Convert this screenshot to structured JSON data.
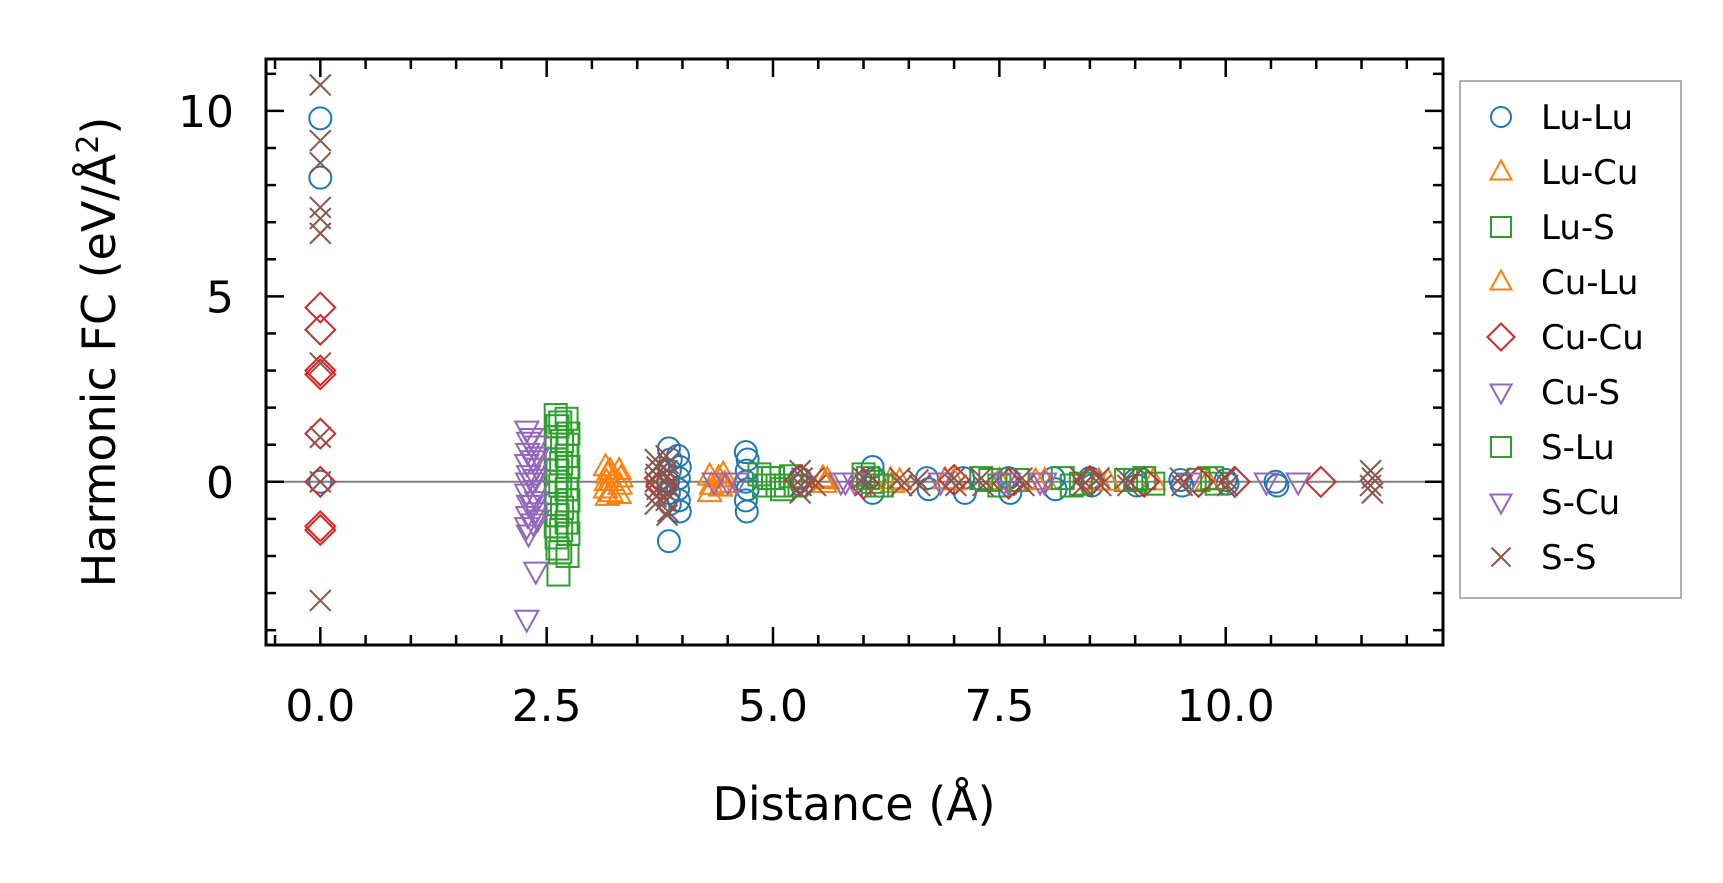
{
  "chart_data": {
    "type": "scatter",
    "title": "",
    "xlabel": "Distance (Å)",
    "ylabel_main": "Harmonic FC (eV/Å",
    "ylabel_sup": "2",
    "ylabel_close": ")",
    "xlim": [
      -0.6,
      12.4
    ],
    "ylim": [
      -4.4,
      11.4
    ],
    "xticks": [
      0.0,
      2.5,
      5.0,
      7.5,
      10.0
    ],
    "xtick_labels": [
      "0.0",
      "2.5",
      "5.0",
      "7.5",
      "10.0"
    ],
    "yticks": [
      0,
      5,
      10
    ],
    "ytick_labels": [
      "0",
      "5",
      "10"
    ],
    "zero_line": true,
    "legend_position": "right-outside",
    "series": [
      {
        "name": "Lu-Lu",
        "marker": "circle",
        "color": "#1f77b4",
        "points": [
          [
            0,
            9.8
          ],
          [
            0,
            8.2
          ],
          [
            0,
            0
          ],
          [
            3.85,
            0.9
          ],
          [
            3.87,
            0.6
          ],
          [
            3.86,
            0.3
          ],
          [
            3.84,
            0
          ],
          [
            3.85,
            -0.3
          ],
          [
            3.86,
            -0.6
          ],
          [
            3.85,
            -1.6
          ],
          [
            3.95,
            0.7
          ],
          [
            3.97,
            0.4
          ],
          [
            3.96,
            0.1
          ],
          [
            3.95,
            -0.2
          ],
          [
            3.96,
            -0.5
          ],
          [
            3.97,
            -0.8
          ],
          [
            4.7,
            0.8
          ],
          [
            4.72,
            0.6
          ],
          [
            4.71,
            0.3
          ],
          [
            4.7,
            0
          ],
          [
            4.72,
            -0.2
          ],
          [
            4.7,
            -0.5
          ],
          [
            4.71,
            -0.8
          ],
          [
            5.3,
            0.1
          ],
          [
            5.32,
            -0.1
          ],
          [
            6.1,
            0.4
          ],
          [
            6.12,
            0.1
          ],
          [
            6.1,
            -0.3
          ],
          [
            6.7,
            0.1
          ],
          [
            6.72,
            -0.2
          ],
          [
            7.1,
            0.1
          ],
          [
            7.12,
            -0.3
          ],
          [
            7.6,
            0.1
          ],
          [
            7.62,
            -0.3
          ],
          [
            8.1,
            0.1
          ],
          [
            8.12,
            -0.2
          ],
          [
            8.5,
            0.1
          ],
          [
            8.52,
            -0.1
          ],
          [
            9.0,
            0.05
          ],
          [
            9.02,
            -0.1
          ],
          [
            9.5,
            0.05
          ],
          [
            9.52,
            -0.1
          ],
          [
            10.0,
            0.05
          ],
          [
            10.02,
            -0.05
          ],
          [
            10.55,
            0
          ],
          [
            10.57,
            -0.1
          ]
        ]
      },
      {
        "name": "Lu-Cu",
        "marker": "triangle-up",
        "color": "#ff7f0e",
        "points": [
          [
            3.15,
            0.4
          ],
          [
            3.17,
            0.2
          ],
          [
            3.16,
            0
          ],
          [
            3.15,
            -0.2
          ],
          [
            3.17,
            -0.4
          ],
          [
            3.3,
            0.3
          ],
          [
            3.32,
            0.1
          ],
          [
            3.31,
            -0.1
          ],
          [
            3.3,
            -0.35
          ],
          [
            4.3,
            0.15
          ],
          [
            4.32,
            -0.1
          ],
          [
            4.3,
            -0.3
          ],
          [
            4.45,
            0.2
          ],
          [
            4.47,
            -0.05
          ],
          [
            5.55,
            0.1
          ],
          [
            5.57,
            -0.05
          ],
          [
            6.3,
            0.05
          ],
          [
            6.32,
            -0.05
          ],
          [
            6.9,
            0.05
          ],
          [
            7.5,
            0.03
          ],
          [
            8.0,
            0.03
          ],
          [
            8.6,
            0.02
          ],
          [
            9.2,
            0.02
          ],
          [
            9.8,
            0.02
          ]
        ]
      },
      {
        "name": "Lu-S",
        "marker": "square",
        "color": "#2ca02c",
        "points": [
          [
            2.6,
            1.8
          ],
          [
            2.62,
            1.5
          ],
          [
            2.6,
            1.2
          ],
          [
            2.61,
            0.9
          ],
          [
            2.6,
            0.6
          ],
          [
            2.62,
            0.3
          ],
          [
            2.6,
            0
          ],
          [
            2.61,
            -0.3
          ],
          [
            2.6,
            -0.6
          ],
          [
            2.62,
            -0.9
          ],
          [
            2.6,
            -1.2
          ],
          [
            2.61,
            -1.5
          ],
          [
            2.62,
            -1.8
          ],
          [
            2.63,
            -2.5
          ],
          [
            2.72,
            1.7
          ],
          [
            2.74,
            1.3
          ],
          [
            2.73,
            1.0
          ],
          [
            2.72,
            0.7
          ],
          [
            2.74,
            0.4
          ],
          [
            2.73,
            0.1
          ],
          [
            2.72,
            -0.2
          ],
          [
            2.74,
            -0.5
          ],
          [
            2.73,
            -0.8
          ],
          [
            2.72,
            -1.1
          ],
          [
            2.74,
            -1.4
          ],
          [
            2.73,
            -2.0
          ],
          [
            4.85,
            0.2
          ],
          [
            4.9,
            -0.1
          ],
          [
            5.0,
            0.1
          ],
          [
            5.1,
            -0.2
          ],
          [
            5.2,
            0.15
          ],
          [
            5.25,
            -0.1
          ],
          [
            6.0,
            0.2
          ],
          [
            6.1,
            0
          ],
          [
            6.2,
            -0.1
          ],
          [
            7.3,
            0.1
          ],
          [
            7.5,
            -0.1
          ],
          [
            7.7,
            0.05
          ],
          [
            8.2,
            0.1
          ],
          [
            8.3,
            -0.1
          ],
          [
            8.9,
            0.05
          ],
          [
            9.1,
            0.1
          ],
          [
            9.2,
            -0.05
          ],
          [
            9.7,
            0.05
          ],
          [
            9.85,
            0.1
          ],
          [
            9.9,
            -0.05
          ]
        ]
      },
      {
        "name": "Cu-Lu",
        "marker": "triangle-up",
        "color": "#ff7f0e",
        "points": [
          [
            3.2,
            0.3
          ],
          [
            3.22,
            0
          ],
          [
            3.21,
            -0.3
          ],
          [
            4.4,
            0.1
          ],
          [
            4.42,
            -0.15
          ],
          [
            5.6,
            0.05
          ],
          [
            6.4,
            0.02
          ],
          [
            7.0,
            0.02
          ],
          [
            7.9,
            0.02
          ],
          [
            8.7,
            0.01
          ]
        ]
      },
      {
        "name": "Cu-Cu",
        "marker": "diamond",
        "color": "#d62728",
        "points": [
          [
            0,
            4.7
          ],
          [
            0,
            4.1
          ],
          [
            0,
            3.0
          ],
          [
            0,
            2.9
          ],
          [
            0,
            1.3
          ],
          [
            0,
            0
          ],
          [
            0,
            -1.2
          ],
          [
            0,
            -1.3
          ],
          [
            3.75,
            0.1
          ],
          [
            3.77,
            -0.1
          ],
          [
            5.3,
            0.05
          ],
          [
            6.0,
            -0.05
          ],
          [
            7.0,
            0.05
          ],
          [
            7.6,
            -0.05
          ],
          [
            8.5,
            0.02
          ],
          [
            9.1,
            0
          ],
          [
            9.7,
            0
          ],
          [
            10.1,
            0
          ],
          [
            11.05,
            0
          ]
        ]
      },
      {
        "name": "Cu-S",
        "marker": "triangle-down",
        "color": "#9467bd",
        "points": [
          [
            2.28,
            1.4
          ],
          [
            2.3,
            1.1
          ],
          [
            2.29,
            0.8
          ],
          [
            2.28,
            0.5
          ],
          [
            2.3,
            0.2
          ],
          [
            2.29,
            0
          ],
          [
            2.28,
            -0.3
          ],
          [
            2.3,
            -0.6
          ],
          [
            2.29,
            -0.9
          ],
          [
            2.28,
            -1.2
          ],
          [
            2.3,
            -1.4
          ],
          [
            2.28,
            -3.7
          ],
          [
            2.38,
            1.0
          ],
          [
            2.4,
            0.7
          ],
          [
            2.39,
            0.4
          ],
          [
            2.38,
            0.1
          ],
          [
            2.4,
            -0.2
          ],
          [
            2.39,
            -0.5
          ],
          [
            2.38,
            -0.8
          ],
          [
            2.4,
            -1.0
          ],
          [
            2.38,
            -2.4
          ],
          [
            4.35,
            0
          ],
          [
            4.5,
            0
          ],
          [
            5.8,
            0
          ],
          [
            5.9,
            0
          ],
          [
            6.85,
            0
          ],
          [
            7.55,
            0
          ],
          [
            7.95,
            0
          ],
          [
            8.0,
            0
          ],
          [
            10.45,
            0
          ],
          [
            10.8,
            0
          ]
        ]
      },
      {
        "name": "S-Lu",
        "marker": "square",
        "color": "#2ca02c",
        "points": [
          [
            2.65,
            1.6
          ],
          [
            2.67,
            1.1
          ],
          [
            2.66,
            0.5
          ],
          [
            2.65,
            -0.1
          ],
          [
            2.67,
            -0.7
          ],
          [
            2.66,
            -1.3
          ],
          [
            2.65,
            -1.9
          ],
          [
            4.95,
            0.1
          ],
          [
            5.05,
            -0.1
          ],
          [
            6.05,
            0.1
          ],
          [
            6.15,
            -0.1
          ],
          [
            7.4,
            0.05
          ],
          [
            8.4,
            -0.05
          ],
          [
            9.0,
            0.05
          ]
        ]
      },
      {
        "name": "S-Cu",
        "marker": "triangle-down",
        "color": "#9467bd",
        "points": [
          [
            2.33,
            1.2
          ],
          [
            2.35,
            0.6
          ],
          [
            2.34,
            0
          ],
          [
            2.33,
            -0.6
          ],
          [
            2.35,
            -1.1
          ],
          [
            4.6,
            0
          ],
          [
            5.75,
            0
          ],
          [
            7.6,
            0
          ],
          [
            9.6,
            0
          ]
        ]
      },
      {
        "name": "S-S",
        "marker": "x",
        "color": "#8c564b",
        "points": [
          [
            0,
            10.7
          ],
          [
            0,
            9.2
          ],
          [
            0,
            8.6
          ],
          [
            0,
            7.4
          ],
          [
            0,
            7.1
          ],
          [
            0,
            6.7
          ],
          [
            0,
            3.2
          ],
          [
            0,
            1.2
          ],
          [
            0,
            0
          ],
          [
            0,
            -3.2
          ],
          [
            3.7,
            0.6
          ],
          [
            3.72,
            0.4
          ],
          [
            3.71,
            0.2
          ],
          [
            3.7,
            0
          ],
          [
            3.72,
            -0.2
          ],
          [
            3.71,
            -0.4
          ],
          [
            3.7,
            -0.6
          ],
          [
            3.82,
            0.7
          ],
          [
            3.84,
            0.5
          ],
          [
            3.83,
            0.3
          ],
          [
            3.82,
            0.1
          ],
          [
            3.84,
            -0.1
          ],
          [
            3.83,
            -0.3
          ],
          [
            3.82,
            -0.5
          ],
          [
            3.84,
            -0.8
          ],
          [
            3.83,
            -0.9
          ],
          [
            5.3,
            0.3
          ],
          [
            5.32,
            0.1
          ],
          [
            5.31,
            -0.1
          ],
          [
            5.3,
            -0.3
          ],
          [
            5.45,
            0.1
          ],
          [
            5.47,
            -0.1
          ],
          [
            6.0,
            0.1
          ],
          [
            6.02,
            -0.1
          ],
          [
            6.4,
            0.1
          ],
          [
            6.42,
            -0.1
          ],
          [
            6.6,
            0.05
          ],
          [
            6.62,
            -0.1
          ],
          [
            7.0,
            0.1
          ],
          [
            7.02,
            -0.1
          ],
          [
            7.3,
            0.1
          ],
          [
            7.32,
            -0.1
          ],
          [
            7.75,
            0.1
          ],
          [
            7.77,
            -0.1
          ],
          [
            8.4,
            0.1
          ],
          [
            8.42,
            -0.1
          ],
          [
            8.6,
            0.1
          ],
          [
            8.62,
            -0.1
          ],
          [
            8.9,
            0.1
          ],
          [
            8.92,
            -0.1
          ],
          [
            9.5,
            0.1
          ],
          [
            9.52,
            -0.1
          ],
          [
            10.0,
            0.1
          ],
          [
            10.02,
            -0.1
          ],
          [
            11.6,
            0.3
          ],
          [
            11.62,
            0.1
          ],
          [
            11.6,
            -0.1
          ],
          [
            11.62,
            -0.3
          ]
        ]
      }
    ]
  }
}
